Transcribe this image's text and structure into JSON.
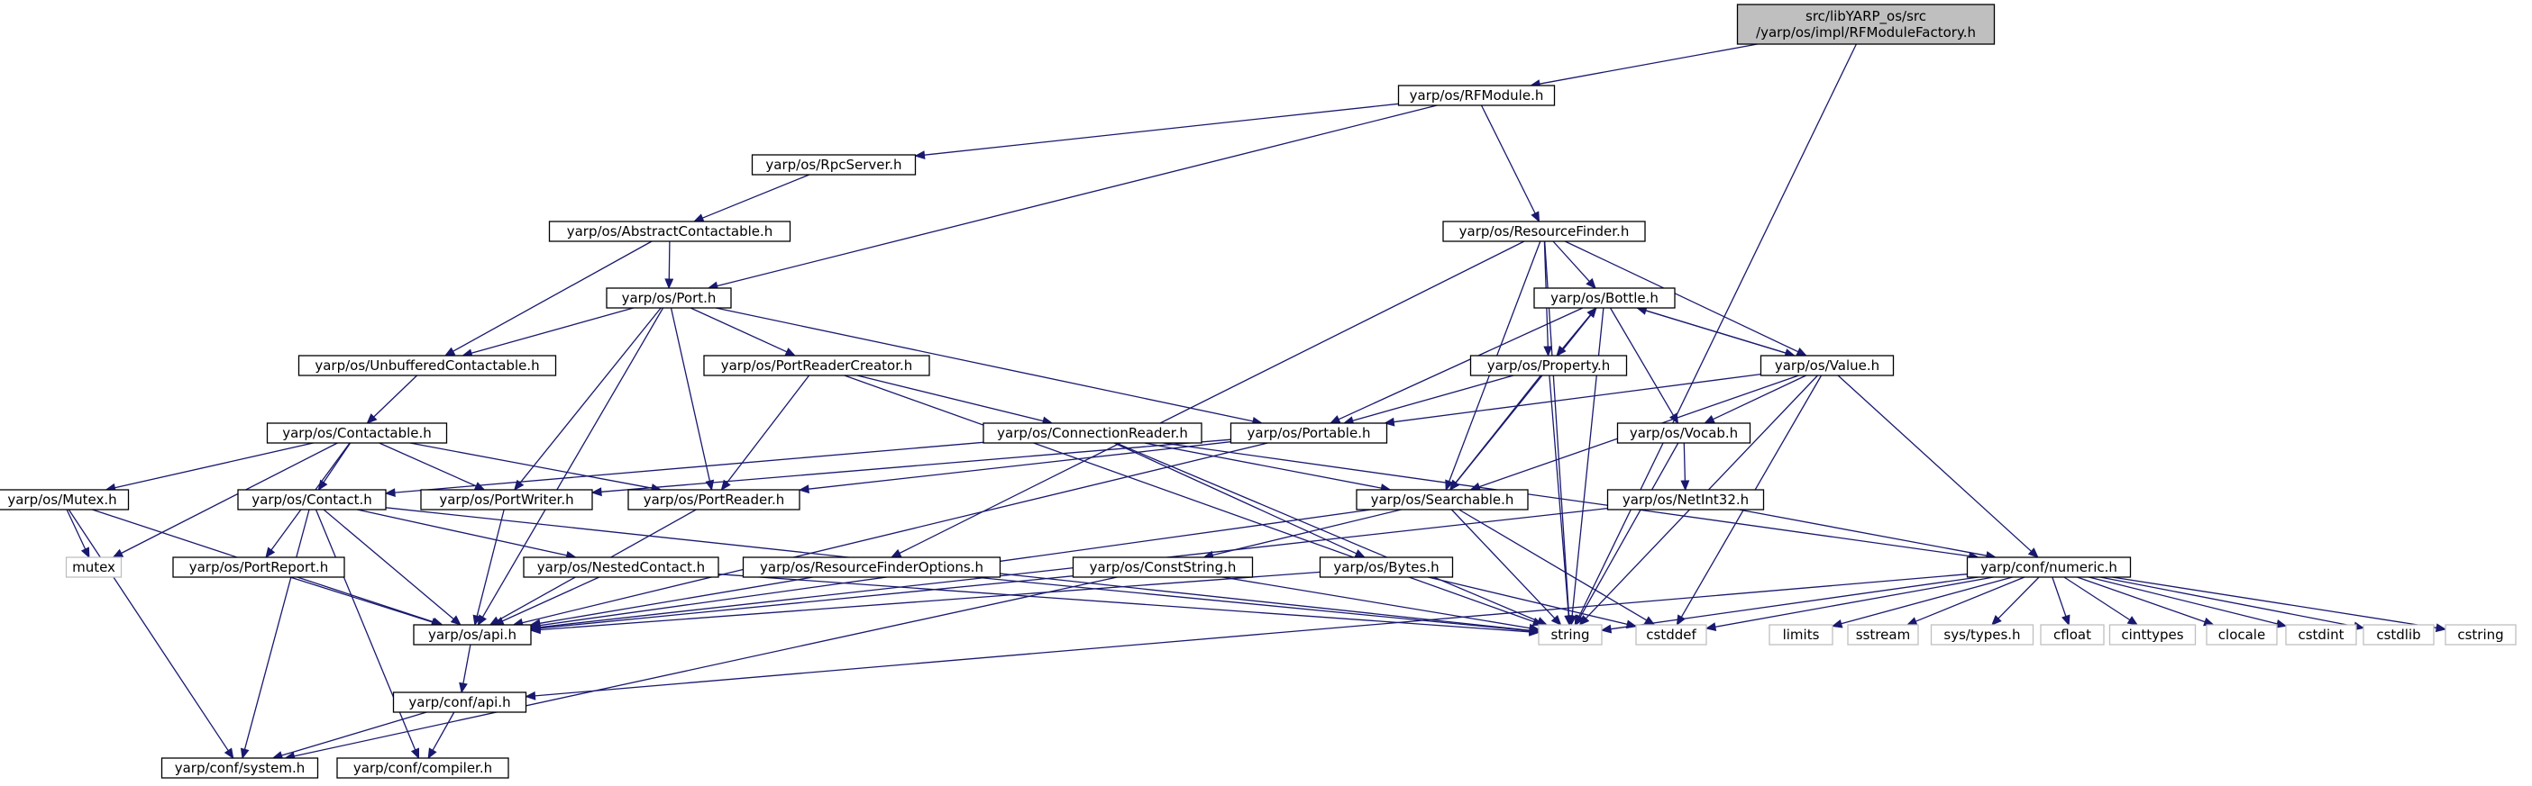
{
  "colors": {
    "edge": "#191970",
    "box_border": "#000000",
    "external_border": "#bfbfbf",
    "root_fill": "#bfbfbf",
    "node_fill": "#ffffff",
    "external_text": "#404040"
  },
  "nodes": [
    {
      "id": "root",
      "label": [
        "src/libYARP_os/src",
        "/yarp/os/impl/RFModuleFactory.h"
      ],
      "kind": "root"
    },
    {
      "id": "rfmodule",
      "label": [
        "yarp/os/RFModule.h"
      ],
      "kind": "header"
    },
    {
      "id": "rpcserver",
      "label": [
        "yarp/os/RpcServer.h"
      ],
      "kind": "header"
    },
    {
      "id": "abstractcontactable",
      "label": [
        "yarp/os/AbstractContactable.h"
      ],
      "kind": "header"
    },
    {
      "id": "port",
      "label": [
        "yarp/os/Port.h"
      ],
      "kind": "header"
    },
    {
      "id": "unbufferedcontactable",
      "label": [
        "yarp/os/UnbufferedContactable.h"
      ],
      "kind": "header"
    },
    {
      "id": "contactable",
      "label": [
        "yarp/os/Contactable.h"
      ],
      "kind": "header"
    },
    {
      "id": "mutex_h",
      "label": [
        "yarp/os/Mutex.h"
      ],
      "kind": "header"
    },
    {
      "id": "mutex",
      "label": [
        "mutex"
      ],
      "kind": "external"
    },
    {
      "id": "contact",
      "label": [
        "yarp/os/Contact.h"
      ],
      "kind": "header"
    },
    {
      "id": "portwriter",
      "label": [
        "yarp/os/PortWriter.h"
      ],
      "kind": "header"
    },
    {
      "id": "portreader",
      "label": [
        "yarp/os/PortReader.h"
      ],
      "kind": "header"
    },
    {
      "id": "portreport",
      "label": [
        "yarp/os/PortReport.h"
      ],
      "kind": "header"
    },
    {
      "id": "nestedcontact",
      "label": [
        "yarp/os/NestedContact.h"
      ],
      "kind": "header"
    },
    {
      "id": "portreadercreator",
      "label": [
        "yarp/os/PortReaderCreator.h"
      ],
      "kind": "header"
    },
    {
      "id": "connectionreader",
      "label": [
        "yarp/os/ConnectionReader.h"
      ],
      "kind": "header"
    },
    {
      "id": "portable",
      "label": [
        "yarp/os/Portable.h"
      ],
      "kind": "header"
    },
    {
      "id": "resourcefinder",
      "label": [
        "yarp/os/ResourceFinder.h"
      ],
      "kind": "header"
    },
    {
      "id": "bottle",
      "label": [
        "yarp/os/Bottle.h"
      ],
      "kind": "header"
    },
    {
      "id": "property",
      "label": [
        "yarp/os/Property.h"
      ],
      "kind": "header"
    },
    {
      "id": "value",
      "label": [
        "yarp/os/Value.h"
      ],
      "kind": "header"
    },
    {
      "id": "vocab",
      "label": [
        "yarp/os/Vocab.h"
      ],
      "kind": "header"
    },
    {
      "id": "netint32",
      "label": [
        "yarp/os/NetInt32.h"
      ],
      "kind": "header"
    },
    {
      "id": "searchable",
      "label": [
        "yarp/os/Searchable.h"
      ],
      "kind": "header"
    },
    {
      "id": "resourcefinderoptions",
      "label": [
        "yarp/os/ResourceFinderOptions.h"
      ],
      "kind": "header"
    },
    {
      "id": "conststring",
      "label": [
        "yarp/os/ConstString.h"
      ],
      "kind": "header"
    },
    {
      "id": "bytes",
      "label": [
        "yarp/os/Bytes.h"
      ],
      "kind": "header"
    },
    {
      "id": "numeric",
      "label": [
        "yarp/conf/numeric.h"
      ],
      "kind": "header"
    },
    {
      "id": "api_os",
      "label": [
        "yarp/os/api.h"
      ],
      "kind": "header"
    },
    {
      "id": "api_conf",
      "label": [
        "yarp/conf/api.h"
      ],
      "kind": "header"
    },
    {
      "id": "system",
      "label": [
        "yarp/conf/system.h"
      ],
      "kind": "header"
    },
    {
      "id": "compiler",
      "label": [
        "yarp/conf/compiler.h"
      ],
      "kind": "header"
    },
    {
      "id": "string",
      "label": [
        "string"
      ],
      "kind": "external"
    },
    {
      "id": "cstddef",
      "label": [
        "cstddef"
      ],
      "kind": "external"
    },
    {
      "id": "limits",
      "label": [
        "limits"
      ],
      "kind": "external"
    },
    {
      "id": "sstream",
      "label": [
        "sstream"
      ],
      "kind": "external"
    },
    {
      "id": "systypes",
      "label": [
        "sys/types.h"
      ],
      "kind": "external"
    },
    {
      "id": "cfloat",
      "label": [
        "cfloat"
      ],
      "kind": "external"
    },
    {
      "id": "cinttypes",
      "label": [
        "cinttypes"
      ],
      "kind": "external"
    },
    {
      "id": "clocale",
      "label": [
        "clocale"
      ],
      "kind": "external"
    },
    {
      "id": "cstdint",
      "label": [
        "cstdint"
      ],
      "kind": "external"
    },
    {
      "id": "cstdlib",
      "label": [
        "cstdlib"
      ],
      "kind": "external"
    },
    {
      "id": "cstring",
      "label": [
        "cstring"
      ],
      "kind": "external"
    }
  ],
  "edges": [
    [
      "root",
      "rfmodule"
    ],
    [
      "root",
      "string"
    ],
    [
      "rfmodule",
      "rpcserver"
    ],
    [
      "rfmodule",
      "port"
    ],
    [
      "rfmodule",
      "resourcefinder"
    ],
    [
      "rpcserver",
      "abstractcontactable"
    ],
    [
      "abstractcontactable",
      "port"
    ],
    [
      "abstractcontactable",
      "unbufferedcontactable"
    ],
    [
      "port",
      "unbufferedcontactable"
    ],
    [
      "port",
      "portreadercreator"
    ],
    [
      "port",
      "portreader"
    ],
    [
      "port",
      "portwriter"
    ],
    [
      "port",
      "portable"
    ],
    [
      "port",
      "api_os"
    ],
    [
      "unbufferedcontactable",
      "contactable"
    ],
    [
      "contactable",
      "mutex_h"
    ],
    [
      "contactable",
      "mutex"
    ],
    [
      "contactable",
      "contact"
    ],
    [
      "contactable",
      "portwriter"
    ],
    [
      "contactable",
      "portreader"
    ],
    [
      "contactable",
      "portreport"
    ],
    [
      "mutex_h",
      "mutex"
    ],
    [
      "mutex_h",
      "api_os"
    ],
    [
      "mutex_h",
      "system"
    ],
    [
      "contact",
      "nestedcontact"
    ],
    [
      "contact",
      "api_os"
    ],
    [
      "contact",
      "string"
    ],
    [
      "contact",
      "system"
    ],
    [
      "contact",
      "compiler"
    ],
    [
      "portwriter",
      "api_os"
    ],
    [
      "portreader",
      "api_os"
    ],
    [
      "portreport",
      "api_os"
    ],
    [
      "nestedcontact",
      "api_os"
    ],
    [
      "nestedcontact",
      "string"
    ],
    [
      "portreadercreator",
      "portreader"
    ],
    [
      "portreadercreator",
      "string"
    ],
    [
      "portreadercreator",
      "connectionreader"
    ],
    [
      "connectionreader",
      "contact"
    ],
    [
      "connectionreader",
      "searchable"
    ],
    [
      "connectionreader",
      "bytes"
    ],
    [
      "connectionreader",
      "numeric"
    ],
    [
      "connectionreader",
      "string"
    ],
    [
      "portable",
      "portwriter"
    ],
    [
      "portable",
      "portreader"
    ],
    [
      "portable",
      "api_os"
    ],
    [
      "resourcefinder",
      "resourcefinderoptions"
    ],
    [
      "resourcefinder",
      "bottle"
    ],
    [
      "resourcefinder",
      "property"
    ],
    [
      "resourcefinder",
      "value"
    ],
    [
      "resourcefinder",
      "searchable"
    ],
    [
      "resourcefinder",
      "string"
    ],
    [
      "bottle",
      "portable"
    ],
    [
      "bottle",
      "searchable"
    ],
    [
      "bottle",
      "property"
    ],
    [
      "bottle",
      "value"
    ],
    [
      "bottle",
      "vocab"
    ],
    [
      "bottle",
      "string"
    ],
    [
      "property",
      "bottle"
    ],
    [
      "property",
      "portable"
    ],
    [
      "property",
      "searchable"
    ],
    [
      "property",
      "string"
    ],
    [
      "value",
      "bottle"
    ],
    [
      "value",
      "portable"
    ],
    [
      "value",
      "searchable"
    ],
    [
      "value",
      "vocab"
    ],
    [
      "value",
      "numeric"
    ],
    [
      "value",
      "string"
    ],
    [
      "value",
      "cstddef"
    ],
    [
      "vocab",
      "netint32"
    ],
    [
      "vocab",
      "string"
    ],
    [
      "netint32",
      "numeric"
    ],
    [
      "netint32",
      "api_os"
    ],
    [
      "searchable",
      "conststring"
    ],
    [
      "searchable",
      "api_os"
    ],
    [
      "searchable",
      "string"
    ],
    [
      "searchable",
      "cstddef"
    ],
    [
      "resourcefinderoptions",
      "api_os"
    ],
    [
      "resourcefinderoptions",
      "string"
    ],
    [
      "conststring",
      "api_os"
    ],
    [
      "conststring",
      "string"
    ],
    [
      "conststring",
      "system"
    ],
    [
      "bytes",
      "api_os"
    ],
    [
      "bytes",
      "cstddef"
    ],
    [
      "numeric",
      "api_conf"
    ],
    [
      "numeric",
      "string"
    ],
    [
      "numeric",
      "cstddef"
    ],
    [
      "numeric",
      "limits"
    ],
    [
      "numeric",
      "sstream"
    ],
    [
      "numeric",
      "systypes"
    ],
    [
      "numeric",
      "cfloat"
    ],
    [
      "numeric",
      "cinttypes"
    ],
    [
      "numeric",
      "clocale"
    ],
    [
      "numeric",
      "cstdint"
    ],
    [
      "numeric",
      "cstdlib"
    ],
    [
      "numeric",
      "cstring"
    ],
    [
      "api_os",
      "api_conf"
    ],
    [
      "api_conf",
      "system"
    ],
    [
      "api_conf",
      "compiler"
    ]
  ]
}
